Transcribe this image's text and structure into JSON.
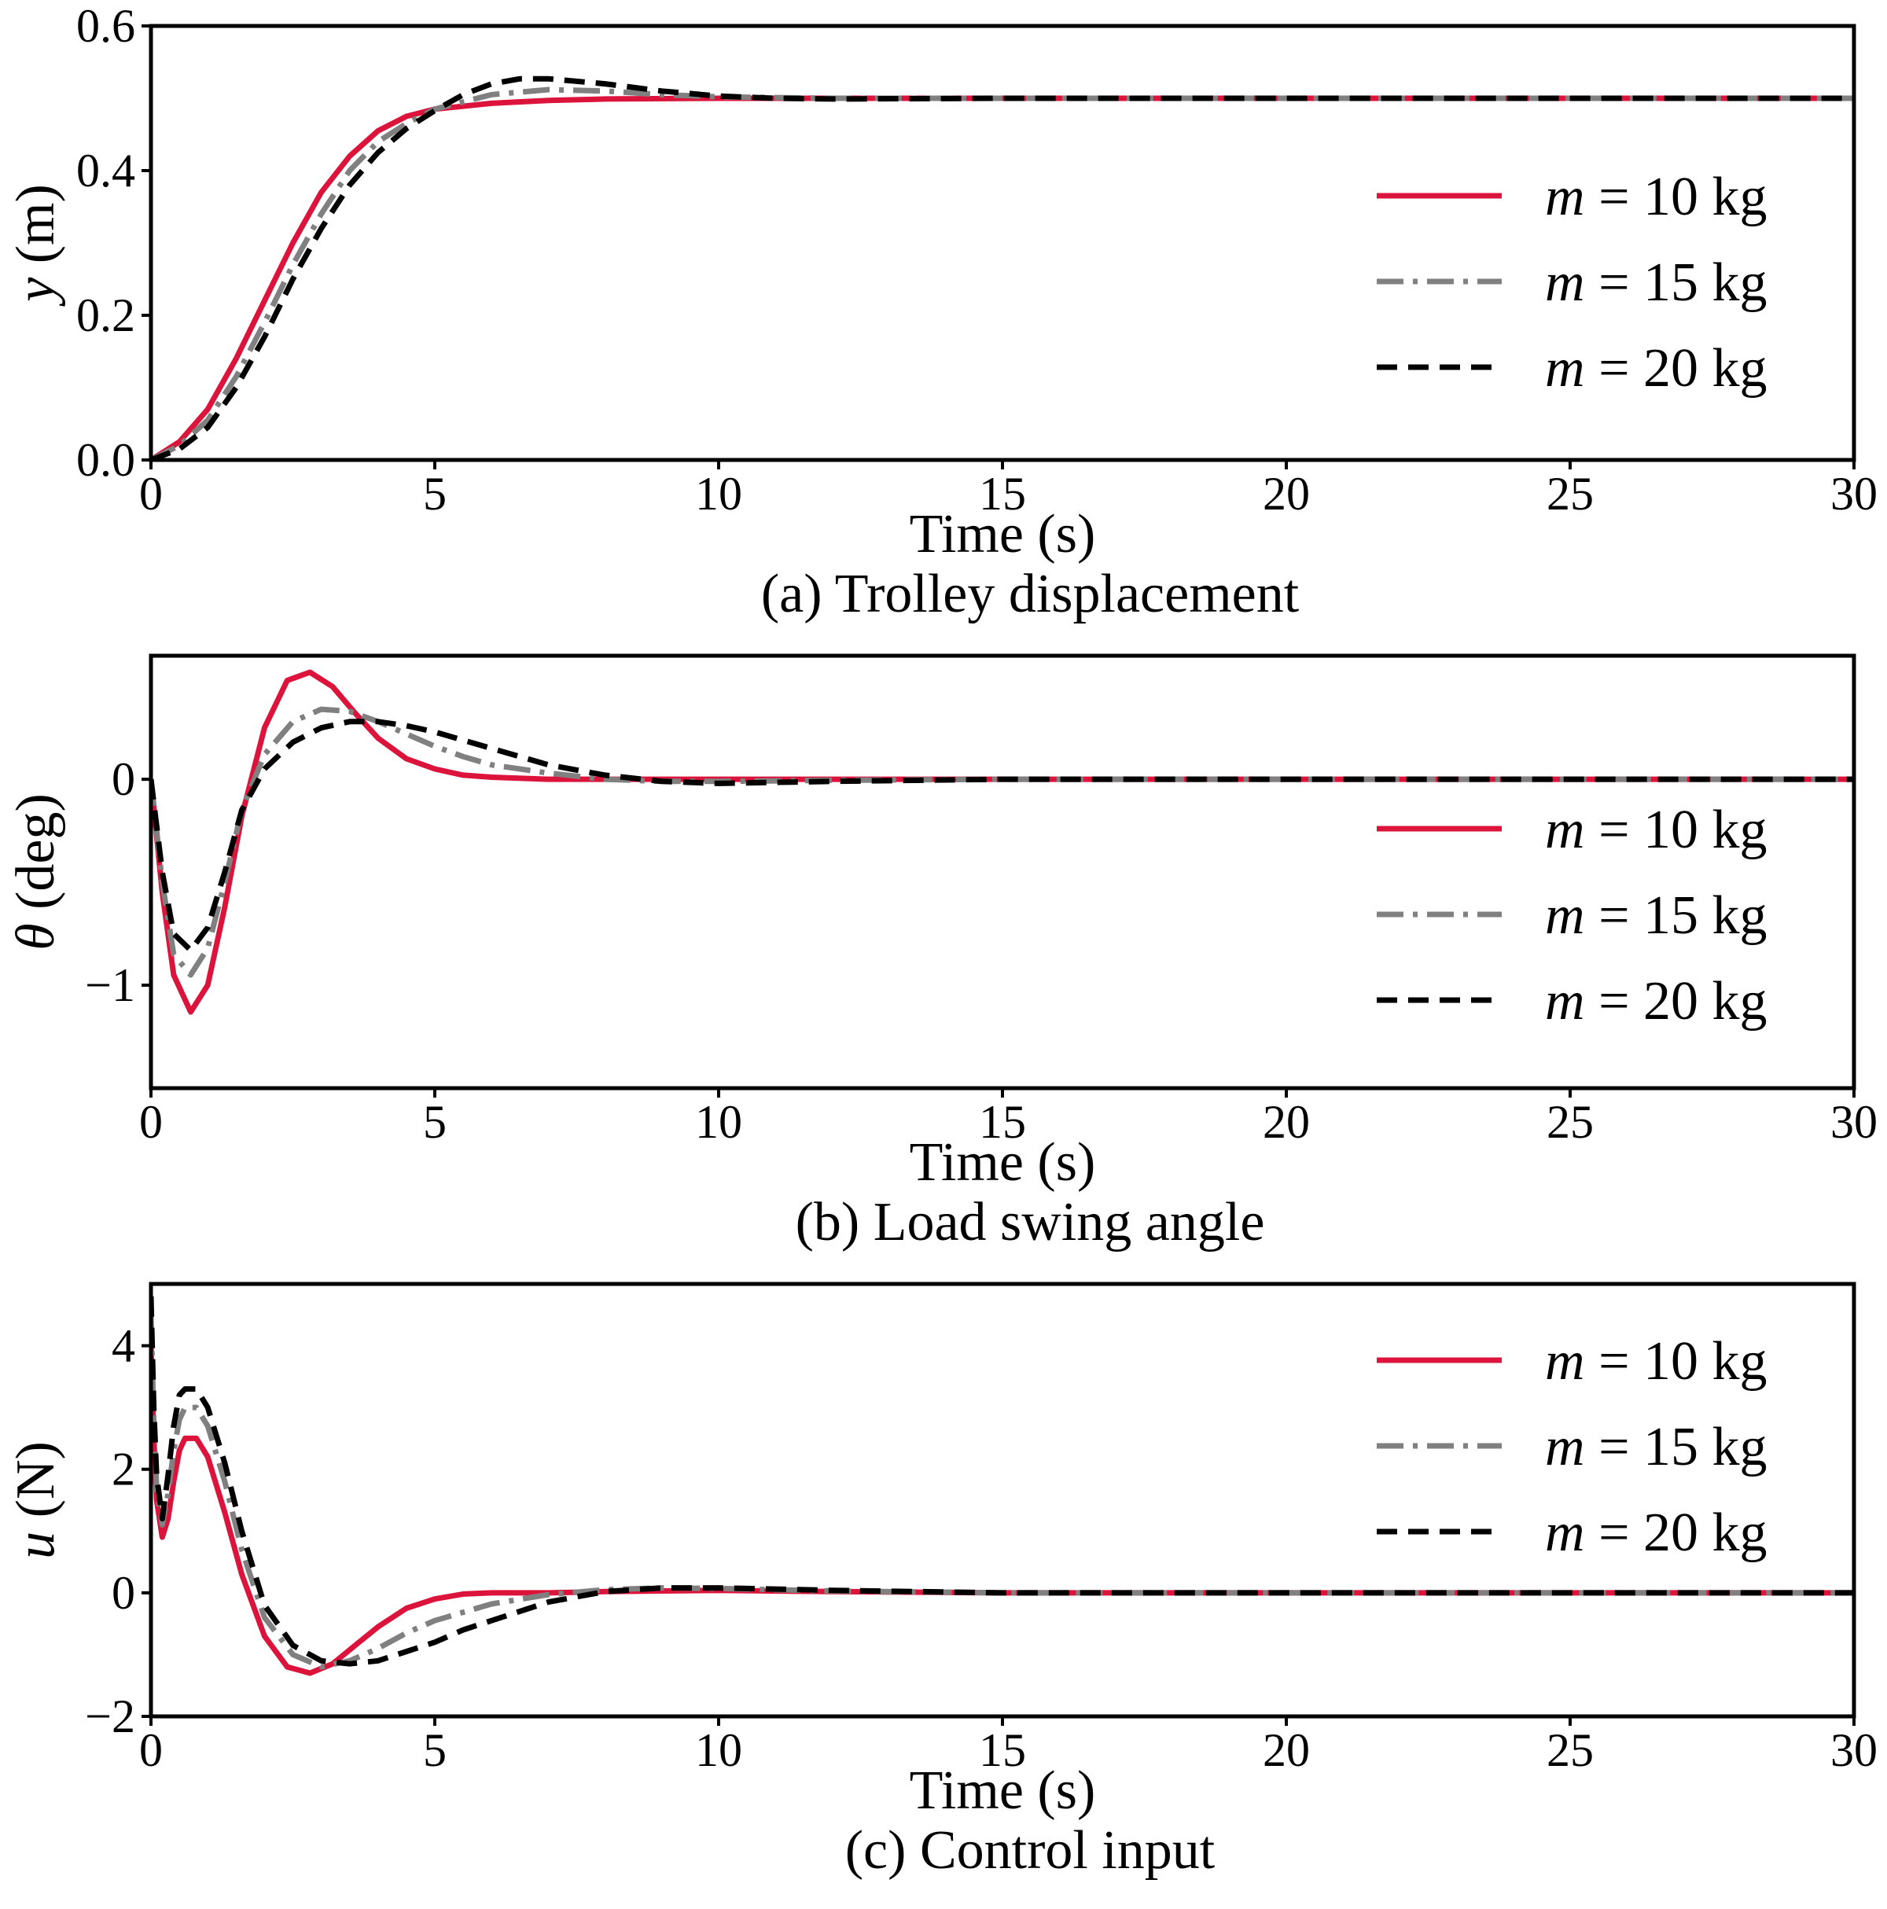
{
  "chart_data": [
    {
      "type": "line",
      "caption": "(a) Trolley displacement",
      "xlabel": "Time (s)",
      "ylabel": {
        "var": "y",
        "unit": " (m)"
      },
      "xlim": [
        0,
        30
      ],
      "ylim": [
        0,
        0.6
      ],
      "xticks": [
        0,
        5,
        10,
        15,
        20,
        25,
        30
      ],
      "xtick_labels": [
        "0",
        "5",
        "10",
        "15",
        "20",
        "25",
        "30"
      ],
      "yticks": [
        0,
        0.2,
        0.4,
        0.6
      ],
      "ytick_labels": [
        "0.0",
        "0.2",
        "0.4",
        "0.6"
      ],
      "legend_position": "center-right",
      "series": [
        {
          "name": "m = 10 kg",
          "legend_var": "m",
          "legend_rest": " = 10 kg",
          "color": "#dc143c",
          "style": "solid",
          "x": [
            0,
            0.5,
            1,
            1.5,
            2,
            2.5,
            3,
            3.5,
            4,
            4.5,
            5,
            6,
            7,
            8,
            10,
            12,
            15,
            20,
            25,
            30
          ],
          "y": [
            0,
            0.025,
            0.07,
            0.14,
            0.22,
            0.3,
            0.37,
            0.42,
            0.455,
            0.475,
            0.485,
            0.493,
            0.497,
            0.499,
            0.5,
            0.5,
            0.5,
            0.5,
            0.5,
            0.5
          ]
        },
        {
          "name": "m = 15 kg",
          "legend_var": "m",
          "legend_rest": " = 15 kg",
          "color": "#808080",
          "style": "dashdot",
          "x": [
            0,
            0.5,
            1,
            1.5,
            2,
            2.5,
            3,
            3.5,
            4,
            4.5,
            5,
            6,
            7,
            8,
            9,
            10,
            12,
            15,
            20,
            25,
            30
          ],
          "y": [
            0,
            0.02,
            0.055,
            0.115,
            0.19,
            0.27,
            0.34,
            0.4,
            0.44,
            0.465,
            0.485,
            0.505,
            0.512,
            0.51,
            0.505,
            0.502,
            0.5,
            0.5,
            0.5,
            0.5,
            0.5
          ]
        },
        {
          "name": "m = 20 kg",
          "legend_var": "m",
          "legend_rest": " = 20 kg",
          "color": "#000000",
          "style": "dashed",
          "x": [
            0,
            0.5,
            1,
            1.5,
            2,
            2.5,
            3,
            3.5,
            4,
            4.5,
            5,
            5.5,
            6,
            6.5,
            7,
            8,
            9,
            10,
            11,
            12,
            15,
            20,
            25,
            30
          ],
          "y": [
            0,
            0.015,
            0.045,
            0.1,
            0.17,
            0.25,
            0.32,
            0.38,
            0.425,
            0.458,
            0.483,
            0.505,
            0.52,
            0.527,
            0.527,
            0.52,
            0.51,
            0.503,
            0.5,
            0.499,
            0.5,
            0.5,
            0.5,
            0.5
          ]
        }
      ]
    },
    {
      "type": "line",
      "caption": "(b) Load swing angle",
      "xlabel": "Time (s)",
      "ylabel": {
        "var": "θ",
        "unit": " (deg)"
      },
      "xlim": [
        0,
        30
      ],
      "ylim": [
        -1.5,
        0.6
      ],
      "xticks": [
        0,
        5,
        10,
        15,
        20,
        25,
        30
      ],
      "xtick_labels": [
        "0",
        "5",
        "10",
        "15",
        "20",
        "25",
        "30"
      ],
      "yticks": [
        -1,
        0
      ],
      "ytick_labels": [
        "−1",
        "0"
      ],
      "legend_position": "lower-right",
      "series": [
        {
          "name": "m = 10 kg",
          "legend_var": "m",
          "legend_rest": " = 10 kg",
          "color": "#dc143c",
          "style": "solid",
          "x": [
            0,
            0.2,
            0.4,
            0.7,
            1,
            1.3,
            1.6,
            2,
            2.4,
            2.8,
            3.2,
            3.6,
            4,
            4.5,
            5,
            5.5,
            6,
            7,
            8,
            10,
            15,
            20,
            25,
            30
          ],
          "y": [
            0,
            -0.55,
            -0.95,
            -1.13,
            -1.0,
            -0.62,
            -0.18,
            0.25,
            0.48,
            0.52,
            0.45,
            0.32,
            0.2,
            0.1,
            0.05,
            0.02,
            0.01,
            0.0,
            0.0,
            0.0,
            0.0,
            0.0,
            0.0,
            0.0
          ]
        },
        {
          "name": "m = 15 kg",
          "legend_var": "m",
          "legend_rest": " = 15 kg",
          "color": "#808080",
          "style": "dashdot",
          "x": [
            0,
            0.2,
            0.4,
            0.7,
            1,
            1.3,
            1.6,
            2,
            2.5,
            3,
            3.5,
            4,
            4.5,
            5,
            5.5,
            6,
            7,
            8,
            9,
            10,
            12,
            15,
            20,
            25,
            30
          ],
          "y": [
            0,
            -0.5,
            -0.85,
            -0.95,
            -0.82,
            -0.5,
            -0.15,
            0.12,
            0.28,
            0.34,
            0.33,
            0.28,
            0.22,
            0.16,
            0.11,
            0.07,
            0.03,
            0.0,
            -0.01,
            -0.01,
            -0.005,
            0.0,
            0.0,
            0.0,
            0.0
          ]
        },
        {
          "name": "m = 20 kg",
          "legend_var": "m",
          "legend_rest": " = 20 kg",
          "color": "#000000",
          "style": "dashed",
          "x": [
            0,
            0.2,
            0.4,
            0.7,
            1,
            1.3,
            1.6,
            2,
            2.5,
            3,
            3.5,
            4,
            4.5,
            5,
            5.5,
            6,
            6.5,
            7,
            8,
            9,
            10,
            11,
            12,
            15,
            20,
            25,
            30
          ],
          "y": [
            0,
            -0.45,
            -0.75,
            -0.83,
            -0.72,
            -0.45,
            -0.15,
            0.05,
            0.18,
            0.25,
            0.28,
            0.28,
            0.26,
            0.23,
            0.19,
            0.15,
            0.11,
            0.07,
            0.02,
            -0.01,
            -0.02,
            -0.015,
            -0.01,
            0.0,
            0.0,
            0.0,
            0.0
          ]
        }
      ]
    },
    {
      "type": "line",
      "caption": "(c) Control input",
      "xlabel": "Time (s)",
      "ylabel": {
        "var": "u",
        "unit": " (N)"
      },
      "xlim": [
        0,
        30
      ],
      "ylim": [
        -2,
        5
      ],
      "xticks": [
        0,
        5,
        10,
        15,
        20,
        25,
        30
      ],
      "xtick_labels": [
        "0",
        "5",
        "10",
        "15",
        "20",
        "25",
        "30"
      ],
      "yticks": [
        -2,
        0,
        2,
        4
      ],
      "ytick_labels": [
        "−2",
        "0",
        "2",
        "4"
      ],
      "legend_position": "upper-right",
      "series": [
        {
          "name": "m = 10 kg",
          "legend_var": "m",
          "legend_rest": " = 10 kg",
          "color": "#dc143c",
          "style": "solid",
          "x": [
            0,
            0.05,
            0.1,
            0.2,
            0.3,
            0.4,
            0.5,
            0.6,
            0.8,
            1,
            1.3,
            1.6,
            2,
            2.4,
            2.8,
            3.2,
            3.6,
            4,
            4.5,
            5,
            5.5,
            6,
            7,
            8,
            10,
            12,
            15,
            20,
            25,
            30
          ],
          "y": [
            4.0,
            2.5,
            1.5,
            0.9,
            1.2,
            1.8,
            2.3,
            2.5,
            2.5,
            2.2,
            1.3,
            0.3,
            -0.7,
            -1.2,
            -1.3,
            -1.15,
            -0.85,
            -0.55,
            -0.25,
            -0.1,
            -0.02,
            0.0,
            0.0,
            0.02,
            0.04,
            0.02,
            0.0,
            0.0,
            0.0,
            0.0
          ]
        },
        {
          "name": "m = 15 kg",
          "legend_var": "m",
          "legend_rest": " = 15 kg",
          "color": "#808080",
          "style": "dashdot",
          "x": [
            0,
            0.05,
            0.1,
            0.2,
            0.3,
            0.4,
            0.5,
            0.6,
            0.8,
            1,
            1.3,
            1.6,
            2,
            2.5,
            3,
            3.5,
            4,
            4.5,
            5,
            6,
            7,
            8,
            9,
            10,
            12,
            15,
            20,
            25,
            30
          ],
          "y": [
            4.5,
            2.8,
            1.7,
            1.1,
            1.6,
            2.3,
            2.8,
            3.0,
            3.0,
            2.7,
            1.8,
            0.7,
            -0.4,
            -1.0,
            -1.2,
            -1.1,
            -0.9,
            -0.65,
            -0.45,
            -0.18,
            -0.03,
            0.05,
            0.08,
            0.07,
            0.03,
            0.0,
            0.0,
            0.0,
            0.0
          ]
        },
        {
          "name": "m = 20 kg",
          "legend_var": "m",
          "legend_rest": " = 20 kg",
          "color": "#000000",
          "style": "dashed",
          "x": [
            0,
            0.05,
            0.1,
            0.2,
            0.3,
            0.4,
            0.5,
            0.6,
            0.8,
            1,
            1.3,
            1.6,
            2,
            2.5,
            3,
            3.5,
            4,
            4.5,
            5,
            5.5,
            6,
            7,
            8,
            9,
            10,
            11,
            12,
            15,
            20,
            25,
            30
          ],
          "y": [
            4.8,
            3.0,
            1.9,
            1.2,
            1.9,
            2.7,
            3.2,
            3.3,
            3.3,
            3.0,
            2.1,
            1.0,
            -0.2,
            -0.85,
            -1.1,
            -1.15,
            -1.1,
            -0.95,
            -0.8,
            -0.6,
            -0.45,
            -0.15,
            0.02,
            0.08,
            0.08,
            0.06,
            0.04,
            0.0,
            0.0,
            0.0,
            0.0
          ]
        }
      ]
    }
  ]
}
